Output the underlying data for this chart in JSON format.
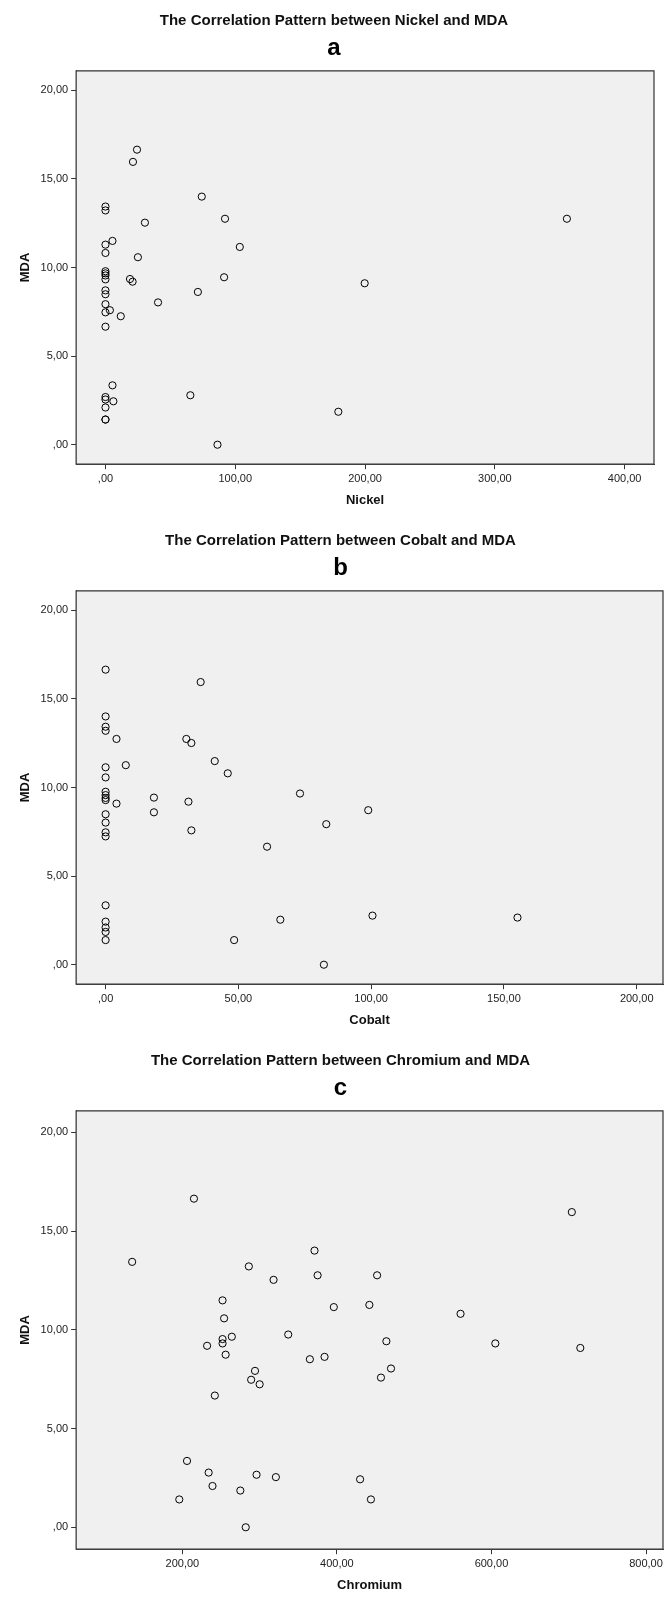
{
  "chart_data": [
    {
      "type": "scatter",
      "title": "The Correlation Pattern between Nickel and MDA",
      "subtitle": "a",
      "xlabel": "Nickel",
      "ylabel": "MDA",
      "marker": "circle",
      "grid": false,
      "legend": false,
      "xlim": [
        -22.6,
        422.6
      ],
      "xticks": [
        {
          "value": 0,
          "label": ",00"
        },
        {
          "value": 100,
          "label": "100,00"
        },
        {
          "value": 200,
          "label": "200,00"
        },
        {
          "value": 300,
          "label": "300,00"
        },
        {
          "value": 400,
          "label": "400,00"
        }
      ],
      "ylim": [
        -1.1,
        21.1
      ],
      "yticks": [
        {
          "value": 0,
          "label": ",00"
        },
        {
          "value": 5,
          "label": "5,00"
        },
        {
          "value": 10,
          "label": "10,00"
        },
        {
          "value": 15,
          "label": "15,00"
        },
        {
          "value": 20,
          "label": "20,00"
        }
      ],
      "series": [
        {
          "color": "#000000",
          "x": [
            24.3,
            21.2,
            74.2,
            0,
            0,
            92.1,
            355.5,
            30.4,
            5.4,
            0,
            103.5,
            0,
            25,
            0,
            0,
            0,
            0,
            18.9,
            20.9,
            91.4,
            199.7,
            71.2,
            0,
            0,
            40.5,
            0,
            3.4,
            0,
            11.8,
            0,
            5.4,
            65.4,
            0,
            0,
            6.1,
            0,
            0,
            0,
            179.4,
            86.3
          ],
          "values": [
            16.65,
            15.96,
            14.0,
            13.44,
            13.22,
            12.75,
            12.75,
            12.53,
            11.5,
            11.29,
            11.16,
            10.82,
            10.58,
            9.79,
            9.67,
            9.55,
            9.33,
            9.35,
            9.2,
            9.45,
            9.11,
            8.62,
            8.71,
            8.49,
            8.03,
            7.93,
            7.59,
            7.47,
            7.25,
            6.66,
            3.35,
            2.79,
            2.69,
            2.55,
            2.45,
            2.1,
            1.42,
            1.42,
            1.86,
            0.0
          ]
        }
      ]
    },
    {
      "type": "scatter",
      "title": "The Correlation Pattern between Cobalt and MDA",
      "subtitle": "b",
      "xlabel": "Cobalt",
      "ylabel": "MDA",
      "marker": "circle",
      "grid": false,
      "legend": false,
      "xlim": [
        -11.1,
        209.9
      ],
      "xticks": [
        {
          "value": 0,
          "label": ",00"
        },
        {
          "value": 50,
          "label": "50,00"
        },
        {
          "value": 100,
          "label": "100,00"
        },
        {
          "value": 150,
          "label": "150,00"
        },
        {
          "value": 200,
          "label": "200,00"
        }
      ],
      "ylim": [
        -1.1,
        21.1
      ],
      "yticks": [
        {
          "value": 0,
          "label": ",00"
        },
        {
          "value": 5,
          "label": "5,00"
        },
        {
          "value": 10,
          "label": "10,00"
        },
        {
          "value": 15,
          "label": "15,00"
        },
        {
          "value": 20,
          "label": "20,00"
        }
      ],
      "series": [
        {
          "color": "#000000",
          "x": [
            0,
            35.8,
            0,
            0,
            0,
            4.1,
            30.4,
            32.3,
            7.6,
            0,
            41.1,
            46.0,
            0,
            0,
            0,
            0,
            0,
            4.1,
            18.2,
            31.2,
            73.2,
            98.9,
            18.2,
            0,
            0,
            0,
            0,
            32.3,
            83.1,
            60.8,
            0,
            0,
            0,
            0,
            0,
            65.8,
            100.5,
            155.1,
            48.4,
            82.2
          ],
          "values": [
            16.65,
            15.95,
            14.01,
            13.43,
            13.2,
            12.74,
            12.74,
            12.51,
            11.26,
            11.14,
            11.49,
            10.8,
            10.57,
            9.76,
            9.57,
            9.41,
            9.29,
            9.09,
            9.43,
            9.2,
            9.66,
            8.72,
            8.6,
            8.49,
            8.02,
            7.47,
            7.24,
            7.58,
            7.93,
            6.66,
            3.35,
            2.43,
            2.1,
            1.85,
            1.39,
            2.54,
            2.77,
            2.66,
            1.39,
            0.0
          ]
        }
      ]
    },
    {
      "type": "scatter",
      "title": "The Correlation Pattern between Chromium and MDA",
      "subtitle": "c",
      "xlabel": "Chromium",
      "ylabel": "MDA",
      "marker": "circle",
      "grid": false,
      "legend": false,
      "xlim": [
        62.5,
        822
      ],
      "xticks": [
        {
          "value": 200,
          "label": "200,00"
        },
        {
          "value": 400,
          "label": "400,00"
        },
        {
          "value": 600,
          "label": "600,00"
        },
        {
          "value": 800,
          "label": "800,00"
        }
      ],
      "ylim": [
        -1.11,
        21.09
      ],
      "yticks": [
        {
          "value": 0,
          "label": ",00"
        },
        {
          "value": 5,
          "label": "5,00"
        },
        {
          "value": 10,
          "label": "10,00"
        },
        {
          "value": 15,
          "label": "15,00"
        },
        {
          "value": 20,
          "label": "20,00"
        }
      ],
      "series": [
        {
          "color": "#000000",
          "x": [
            215,
            704,
            135,
            371,
            286,
            375,
            452,
            318,
            252,
            442,
            396,
            560,
            254,
            337,
            264,
            252,
            252,
            232,
            464,
            605,
            715,
            256,
            365,
            384,
            294,
            470,
            289,
            300,
            457,
            242,
            206,
            234,
            296,
            321,
            430,
            239,
            275,
            196,
            444,
            282
          ],
          "values": [
            16.64,
            15.96,
            13.44,
            14.01,
            13.21,
            12.76,
            12.76,
            12.53,
            11.49,
            11.26,
            11.15,
            10.81,
            10.58,
            9.76,
            9.65,
            9.53,
            9.31,
            9.19,
            9.42,
            9.31,
            9.08,
            8.74,
            8.51,
            8.63,
            7.92,
            8.04,
            7.47,
            7.24,
            7.58,
            6.67,
            3.36,
            2.77,
            2.66,
            2.54,
            2.43,
            2.09,
            1.86,
            1.41,
            1.41,
            0.0
          ]
        }
      ]
    }
  ]
}
